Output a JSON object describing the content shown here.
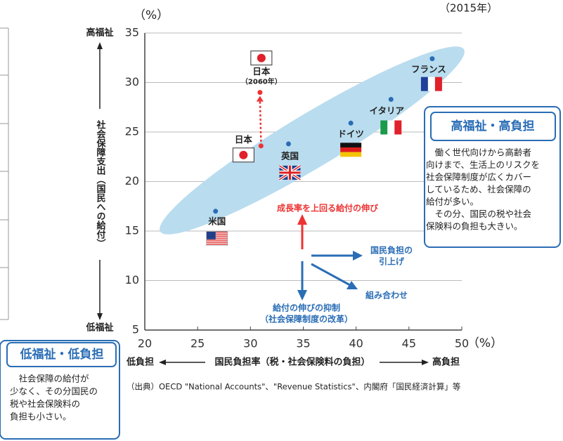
{
  "chart_data": {
    "type": "scatter",
    "unit_y": "（%）",
    "unit_x": "（%）",
    "year_note": "（2015年）",
    "y_label": "社会保障支出（国民への給付）",
    "x_label": "国民負担率（税・社会保険料の負担）",
    "y_high": "高福祉",
    "y_low": "低福祉",
    "x_low": "低負担",
    "x_high": "高負担",
    "xlim": [
      20,
      50
    ],
    "xticks": [
      20,
      25,
      30,
      35,
      40,
      45,
      50
    ],
    "ylim": [
      5,
      35
    ],
    "yticks": [
      5,
      10,
      15,
      20,
      25,
      30,
      35
    ],
    "grid": true,
    "points": [
      {
        "label": "米国",
        "x": 26.7,
        "y": 17.0
      },
      {
        "label": "英国",
        "x": 33.6,
        "y": 23.8
      },
      {
        "label": "ドイツ",
        "x": 39.5,
        "y": 25.9
      },
      {
        "label": "イタリア",
        "x": 43.3,
        "y": 28.3
      },
      {
        "label": "フランス",
        "x": 47.2,
        "y": 32.4
      },
      {
        "label": "日本",
        "x": 31.0,
        "y": 23.6
      },
      {
        "label": "日本",
        "sublabel": "（2060年）",
        "x": 30.9,
        "y": 29.0
      }
    ],
    "annotations": {
      "growth": "成長率を上回る給付の伸び",
      "burden": [
        "国民負担の",
        "引上げ"
      ],
      "combo": "組み合わせ",
      "restrain": [
        "給付の伸びの抑制",
        "（社会保障制度の改革）"
      ]
    },
    "boxes": [
      {
        "title": "高福祉・高負担",
        "lines": [
          "　働く世代向けから高齢者",
          "向けまで、生活上のリスクを",
          "社会保障制度が広くカバー",
          "しているため、社会保障の",
          "給付が多い。",
          "　その分、国民の税や社会",
          "保険料の負担も大きい。"
        ]
      },
      {
        "title": "低福祉・低負担",
        "lines": [
          "　社会保障の給付が",
          "少なく、その分国民の",
          "税や社会保険料の",
          "負担も小さい。"
        ]
      }
    ],
    "source": "（出典）OECD \"National Accounts\"、\"Revenue Statistics\"、内閣府「国民経済計算」等"
  }
}
